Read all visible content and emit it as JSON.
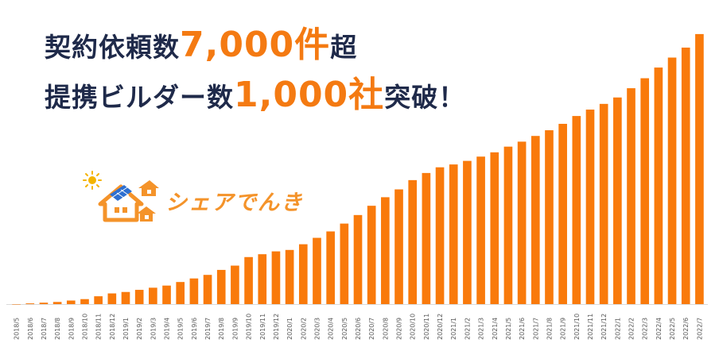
{
  "headline": {
    "line1_prefix": "契約依頼数",
    "line1_number": "7,000件",
    "line1_suffix": "超",
    "line2_prefix": "提携ビルダー数",
    "line2_number": "1,000社",
    "line2_suffix": "突破！"
  },
  "logo": {
    "text": "シェアでんき"
  },
  "colors": {
    "bar": "#f97a0b",
    "headline": "#1f2a4a",
    "accent": "#f47a12",
    "logo": "#f4932a"
  },
  "chart_data": {
    "type": "bar",
    "categories": [
      "2018/5",
      "2018/6",
      "2018/7",
      "2018/8",
      "2018/9",
      "2018/10",
      "2018/11",
      "2018/12",
      "2019/1",
      "2019/2",
      "2019/3",
      "2019/4",
      "2019/5",
      "2019/6",
      "2019/7",
      "2019/8",
      "2019/9",
      "2019/10",
      "2019/11",
      "2019/12",
      "2020/1",
      "2020/2",
      "2020/3",
      "2020/4",
      "2020/5",
      "2020/6",
      "2020/7",
      "2020/8",
      "2020/9",
      "2020/10",
      "2020/11",
      "2020/12",
      "2021/1",
      "2021/2",
      "2021/3",
      "2021/4",
      "2021/5",
      "2021/6",
      "2021/7",
      "2021/8",
      "2021/9",
      "2021/10",
      "2021/11",
      "2021/12",
      "2022/1",
      "2022/2",
      "2022/3",
      "2022/4",
      "2022/5",
      "2022/6",
      "2022/7"
    ],
    "values": [
      0,
      2,
      4,
      6,
      10,
      14,
      22,
      30,
      34,
      40,
      46,
      52,
      62,
      72,
      82,
      96,
      108,
      132,
      140,
      148,
      152,
      168,
      186,
      204,
      226,
      250,
      276,
      300,
      322,
      348,
      368,
      384,
      392,
      402,
      414,
      426,
      442,
      456,
      472,
      488,
      506,
      528,
      546,
      562,
      580,
      606,
      634,
      664,
      692,
      720,
      758
    ],
    "ylim": [
      0,
      760
    ],
    "grid": false,
    "legend": "none"
  }
}
